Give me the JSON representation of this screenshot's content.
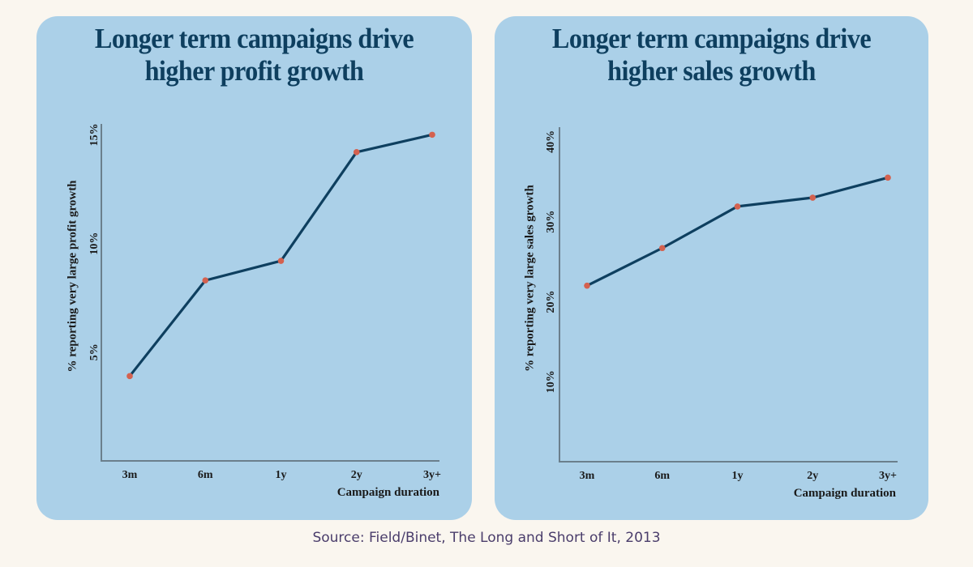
{
  "source": "Source: Field/Binet,  The Long and Short of It, 2013",
  "colors": {
    "page_bg": "#faf6ef",
    "panel_bg": "#abd0e8",
    "title": "#0e3f5f",
    "line": "#0e3f5f",
    "marker": "#d4614f",
    "source_text": "#4a3d6b"
  },
  "chart_data": [
    {
      "type": "line",
      "title": "Longer term campaigns drive\nhigher profit growth",
      "xlabel": "Campaign duration",
      "ylabel": "% reporting very large profit growth",
      "categories": [
        "3m",
        "6m",
        "1y",
        "2y",
        "3y+"
      ],
      "values": [
        3.9,
        8.3,
        9.2,
        14.2,
        15.0
      ],
      "yticks": [
        5,
        10,
        15
      ],
      "ytick_labels": [
        "5%",
        "10%",
        "15%"
      ],
      "ylim": [
        0,
        15.2
      ],
      "grid": false,
      "legend": "none"
    },
    {
      "type": "line",
      "title": "Longer term campaigns drive\nhigher sales growth",
      "xlabel": "Campaign duration",
      "ylabel": "% reporting very large sales growth",
      "categories": [
        "3m",
        "6m",
        "1y",
        "2y",
        "3y+"
      ],
      "values": [
        22.0,
        26.7,
        31.9,
        33.0,
        35.5
      ],
      "yticks": [
        10,
        20,
        30,
        40
      ],
      "ytick_labels": [
        "10%",
        "20%",
        "30%",
        "40%"
      ],
      "ylim": [
        0,
        41
      ],
      "grid": false,
      "legend": "none"
    }
  ]
}
